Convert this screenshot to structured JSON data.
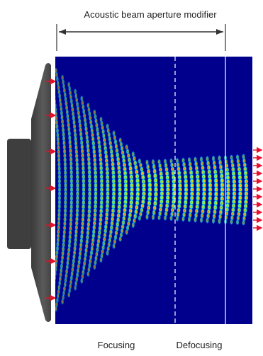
{
  "header": {
    "label": "Acoustic beam aperture modifier"
  },
  "regions": {
    "focusing_label": "Focusing",
    "defocusing_label": "Defocusing"
  },
  "colors": {
    "field_background": "#00008c",
    "transducer": "#505050",
    "arrow": "#e8102a",
    "divider": "#ffffff",
    "text": "#222222"
  }
}
